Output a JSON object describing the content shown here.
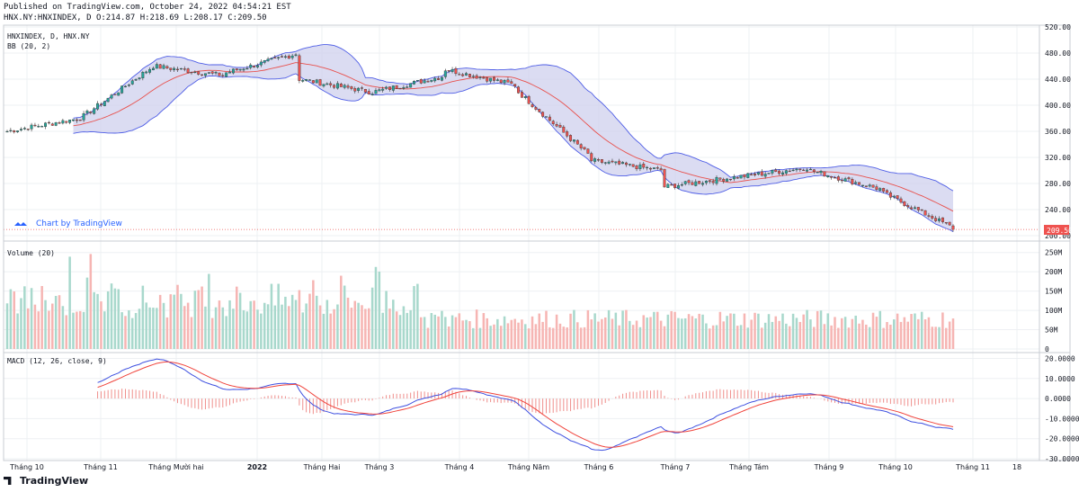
{
  "header": {
    "published": "Published on TradingView.com, October 24, 2022 04:54:21 EST",
    "ohlc": "HNX.NY:HNXINDEX, D O:214.87 H:218.69 L:208.17 C:209.50"
  },
  "colors": {
    "up": "#26a69a",
    "down": "#ef5350",
    "bb_fill": "#cfd0ee",
    "bb_band": "#4f5ee6",
    "bb_basis": "#e8514d",
    "macd": "#3f51e0",
    "signal": "#f0443c"
  },
  "panes": {
    "price": {
      "title": "HNXINDEX, D, HNX.NY",
      "indicator": "BB (20, 2)"
    },
    "volume": {
      "title": "Volume (20)"
    },
    "macd": {
      "title": "MACD (12, 26, close, 9)"
    }
  },
  "watermark_link": "Chart by TradingView",
  "footer": "TradingView",
  "chart_data": [
    {
      "type": "candlestick",
      "series_name": "HNXINDEX, D, HNX.NY",
      "y_axis_ticks": [
        "520.00",
        "480.00",
        "440.00",
        "400.00",
        "360.00",
        "320.00",
        "280.00",
        "240.00",
        "200.00"
      ],
      "ylim": [
        200,
        520
      ],
      "last_price": "209.50",
      "x_ticks": [
        "Tháng 10",
        "Tháng 11",
        "Tháng Mười hai",
        "2022",
        "Tháng Hai",
        "Tháng 3",
        "Tháng 4",
        "Tháng Năm",
        "Tháng 6",
        "Tháng 7",
        "Tháng Tám",
        "Tháng 9",
        "Tháng 10",
        "Tháng 11",
        "18"
      ],
      "closes_by_period": [
        {
          "period": "Tháng 10 2021",
          "start": 360,
          "end": 380
        },
        {
          "period": "Tháng 11 2021",
          "start": 380,
          "end": 460
        },
        {
          "period": "Tháng Mười hai 2021",
          "start": 460,
          "end": 445
        },
        {
          "period": "2022",
          "start": 450,
          "end": 480
        },
        {
          "period": "Tháng Hai",
          "start": 440,
          "end": 420
        },
        {
          "period": "Tháng 3",
          "start": 420,
          "end": 445
        },
        {
          "period": "Tháng 4",
          "start": 455,
          "end": 430
        },
        {
          "period": "Tháng Năm",
          "start": 420,
          "end": 320
        },
        {
          "period": "Tháng 6",
          "start": 315,
          "end": 300
        },
        {
          "period": "Tháng 7",
          "start": 275,
          "end": 290
        },
        {
          "period": "Tháng Tám",
          "start": 290,
          "end": 305
        },
        {
          "period": "Tháng 9",
          "start": 300,
          "end": 270
        },
        {
          "period": "Tháng 10",
          "start": 265,
          "end": 209.5
        }
      ],
      "indicator": "BB (20, 2)"
    },
    {
      "type": "bar",
      "series_name": "Volume (20)",
      "y_axis_ticks": [
        "250M",
        "200M",
        "150M",
        "100M",
        "50M",
        "0"
      ],
      "ylim": [
        0,
        275
      ],
      "unit": "M"
    },
    {
      "type": "line",
      "series_name": "MACD (12, 26, close, 9)",
      "y_axis_ticks": [
        "20.0000",
        "10.0000",
        "0.0000",
        "-10.0000",
        "-20.0000",
        "-30.0000"
      ],
      "ylim": [
        -30,
        22
      ]
    }
  ]
}
